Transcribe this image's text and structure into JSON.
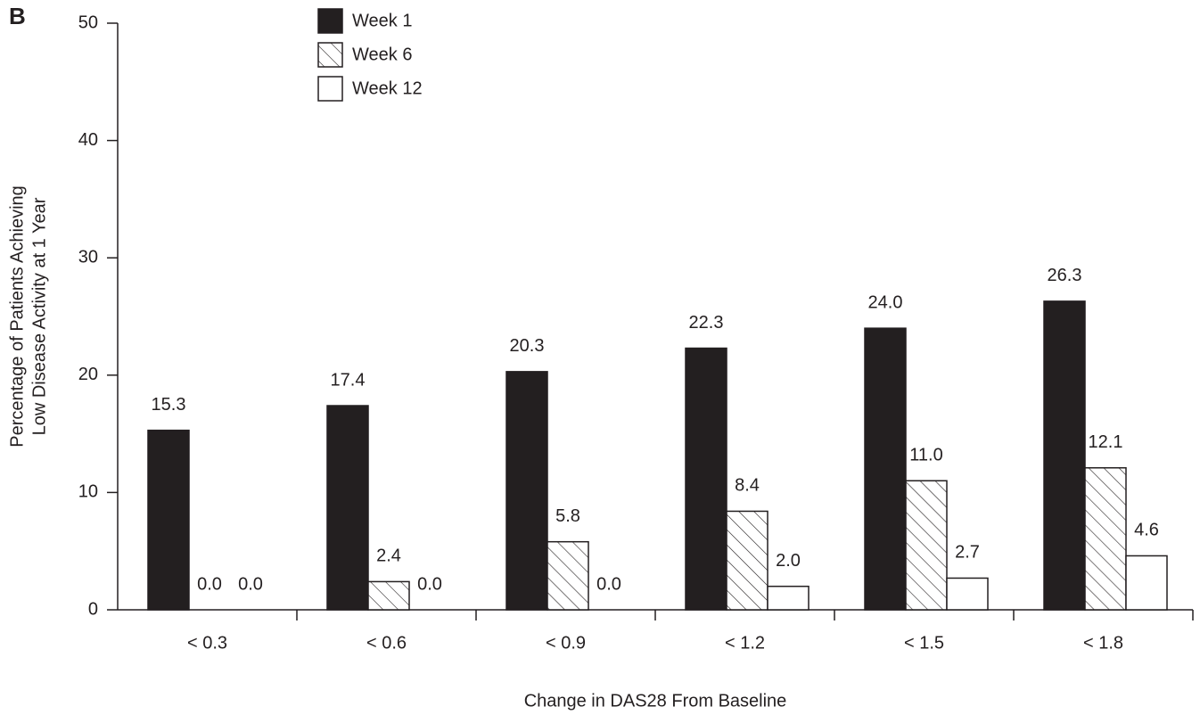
{
  "chart_data": {
    "type": "bar",
    "panel_label": "B",
    "ylabel_lines": [
      "Percentage of Patients Achieving",
      "Low Disease Activity at 1 Year"
    ],
    "xlabel": "Change in DAS28 From Baseline",
    "categories": [
      "< 0.3",
      "< 0.6",
      "< 0.9",
      "< 1.2",
      "< 1.5",
      "< 1.8"
    ],
    "series": [
      {
        "name": "Week 1",
        "color": "#231f20",
        "hatch": false,
        "values": [
          15.3,
          17.4,
          20.3,
          22.3,
          24.0,
          26.3
        ],
        "value_labels": [
          "15.3",
          "17.4",
          "20.3",
          "22.3",
          "24.0",
          "26.3"
        ]
      },
      {
        "name": "Week 6",
        "color": "#ffffff",
        "hatch": true,
        "values": [
          0.0,
          2.4,
          5.8,
          8.4,
          11.0,
          12.1
        ],
        "value_labels": [
          "0.0",
          "2.4",
          "5.8",
          "8.4",
          "11.0",
          "12.1"
        ]
      },
      {
        "name": "Week 12",
        "color": "#ffffff",
        "hatch": false,
        "values": [
          0.0,
          0.0,
          0.0,
          2.0,
          2.7,
          4.6
        ],
        "value_labels": [
          "0.0",
          "0.0",
          "0.0",
          "2.0",
          "2.7",
          "4.6"
        ]
      }
    ],
    "ylim": [
      0,
      50
    ],
    "yticks": [
      0,
      10,
      20,
      30,
      40,
      50
    ],
    "grid": false
  }
}
